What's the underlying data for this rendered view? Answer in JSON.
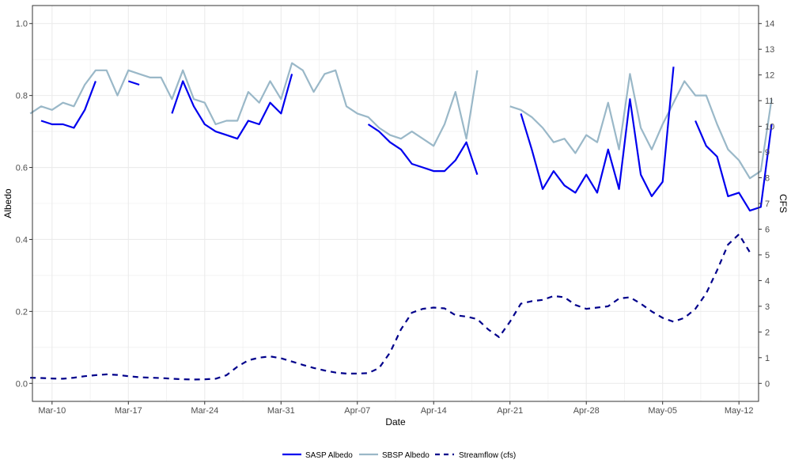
{
  "chart_data": {
    "type": "line",
    "title": "",
    "xlabel": "Date",
    "ylabel": "Albedo",
    "ylabel_right": "CFS",
    "x_tick_labels": [
      "Mar-10",
      "Mar-17",
      "Mar-24",
      "Mar-31",
      "Apr-07",
      "Apr-14",
      "Apr-21",
      "Apr-28",
      "May-05",
      "May-12"
    ],
    "x_tick_days": [
      9,
      16,
      23,
      30,
      37,
      44,
      51,
      58,
      65,
      72
    ],
    "x_range_days": [
      7.2,
      73.8
    ],
    "x_date_note": "Year unknown; days counted from Mar-01",
    "ylim": [
      -0.05,
      1.05
    ],
    "y_ticks": [
      "0.0",
      "0.2",
      "0.4",
      "0.6",
      "0.8",
      "1.0"
    ],
    "y2lim": [
      -0.7,
      14.7
    ],
    "y2_ticks": [
      "0",
      "1",
      "2",
      "3",
      "4",
      "5",
      "6",
      "7",
      "8",
      "9",
      "10",
      "11",
      "12",
      "13",
      "14"
    ],
    "grid": true,
    "legend_position": "bottom",
    "colors": {
      "sasp": "#0000ee",
      "sbsp": "#9ab8c8",
      "streamflow": "#00008b",
      "grid": "#ebebeb",
      "border": "#333333"
    },
    "series": [
      {
        "name": "SASP Albedo",
        "axis": "left",
        "style": "solid",
        "color": "#0000ee",
        "segments": [
          [
            [
              "Mar-08",
              0.73
            ],
            [
              "Mar-09",
              0.72
            ],
            [
              "Mar-10",
              0.72
            ],
            [
              "Mar-11",
              0.71
            ],
            [
              "Mar-12",
              0.76
            ],
            [
              "Mar-13",
              0.84
            ]
          ],
          [
            [
              "Mar-16",
              0.84
            ],
            [
              "Mar-17",
              0.83
            ]
          ],
          [
            [
              "Mar-20",
              0.75
            ],
            [
              "Mar-21",
              0.84
            ],
            [
              "Mar-22",
              0.77
            ],
            [
              "Mar-23",
              0.72
            ],
            [
              "Mar-24",
              0.7
            ],
            [
              "Mar-25",
              0.69
            ],
            [
              "Mar-26",
              0.68
            ],
            [
              "Mar-27",
              0.73
            ],
            [
              "Mar-28",
              0.72
            ],
            [
              "Mar-29",
              0.78
            ],
            [
              "Mar-30",
              0.75
            ],
            [
              "Mar-31",
              0.86
            ]
          ],
          [
            [
              "Apr-07",
              0.72
            ],
            [
              "Apr-08",
              0.7
            ],
            [
              "Apr-09",
              0.67
            ],
            [
              "Apr-10",
              0.65
            ],
            [
              "Apr-11",
              0.61
            ],
            [
              "Apr-12",
              0.6
            ],
            [
              "Apr-13",
              0.59
            ],
            [
              "Apr-14",
              0.59
            ],
            [
              "Apr-15",
              0.62
            ],
            [
              "Apr-16",
              0.67
            ],
            [
              "Apr-17",
              0.58
            ]
          ],
          [
            [
              "Apr-21",
              0.75
            ],
            [
              "Apr-22",
              0.65
            ],
            [
              "Apr-23",
              0.54
            ],
            [
              "Apr-24",
              0.59
            ],
            [
              "Apr-25",
              0.55
            ],
            [
              "Apr-26",
              0.53
            ],
            [
              "Apr-27",
              0.58
            ],
            [
              "Apr-28",
              0.53
            ],
            [
              "Apr-29",
              0.65
            ],
            [
              "Apr-30",
              0.54
            ],
            [
              "May-01",
              0.79
            ],
            [
              "May-02",
              0.58
            ],
            [
              "May-03",
              0.52
            ],
            [
              "May-04",
              0.56
            ],
            [
              "May-05",
              0.88
            ]
          ],
          [
            [
              "May-07",
              0.73
            ],
            [
              "May-08",
              0.66
            ],
            [
              "May-09",
              0.63
            ],
            [
              "May-10",
              0.52
            ],
            [
              "May-11",
              0.53
            ],
            [
              "May-12",
              0.48
            ],
            [
              "May-13",
              0.49
            ],
            [
              "May-14",
              0.72
            ]
          ]
        ]
      },
      {
        "name": "SBSP Albedo",
        "axis": "left",
        "style": "solid",
        "color": "#9ab8c8",
        "segments": [
          [
            [
              "Mar-07",
              0.75
            ],
            [
              "Mar-08",
              0.77
            ],
            [
              "Mar-09",
              0.76
            ],
            [
              "Mar-10",
              0.78
            ],
            [
              "Mar-11",
              0.77
            ],
            [
              "Mar-12",
              0.83
            ],
            [
              "Mar-13",
              0.87
            ],
            [
              "Mar-14",
              0.87
            ],
            [
              "Mar-15",
              0.8
            ],
            [
              "Mar-16",
              0.87
            ],
            [
              "Mar-17",
              0.86
            ],
            [
              "Mar-18",
              0.85
            ],
            [
              "Mar-19",
              0.85
            ],
            [
              "Mar-20",
              0.79
            ],
            [
              "Mar-21",
              0.87
            ],
            [
              "Mar-22",
              0.79
            ],
            [
              "Mar-23",
              0.78
            ],
            [
              "Mar-24",
              0.72
            ],
            [
              "Mar-25",
              0.73
            ],
            [
              "Mar-26",
              0.73
            ],
            [
              "Mar-27",
              0.81
            ],
            [
              "Mar-28",
              0.78
            ],
            [
              "Mar-29",
              0.84
            ],
            [
              "Mar-30",
              0.79
            ],
            [
              "Mar-31",
              0.89
            ],
            [
              "Apr-01",
              0.87
            ],
            [
              "Apr-02",
              0.81
            ],
            [
              "Apr-03",
              0.86
            ],
            [
              "Apr-04",
              0.87
            ],
            [
              "Apr-05",
              0.77
            ],
            [
              "Apr-06",
              0.75
            ],
            [
              "Apr-07",
              0.74
            ],
            [
              "Apr-08",
              0.71
            ],
            [
              "Apr-09",
              0.69
            ],
            [
              "Apr-10",
              0.68
            ],
            [
              "Apr-11",
              0.7
            ],
            [
              "Apr-12",
              0.68
            ],
            [
              "Apr-13",
              0.66
            ],
            [
              "Apr-14",
              0.72
            ],
            [
              "Apr-15",
              0.81
            ],
            [
              "Apr-16",
              0.68
            ],
            [
              "Apr-17",
              0.87
            ]
          ],
          [
            [
              "Apr-20",
              0.77
            ],
            [
              "Apr-21",
              0.76
            ],
            [
              "Apr-22",
              0.74
            ],
            [
              "Apr-23",
              0.71
            ],
            [
              "Apr-24",
              0.67
            ],
            [
              "Apr-25",
              0.68
            ],
            [
              "Apr-26",
              0.64
            ],
            [
              "Apr-27",
              0.69
            ],
            [
              "Apr-28",
              0.67
            ],
            [
              "Apr-29",
              0.78
            ],
            [
              "Apr-30",
              0.65
            ],
            [
              "May-01",
              0.86
            ],
            [
              "May-02",
              0.71
            ],
            [
              "May-03",
              0.65
            ],
            [
              "May-04",
              0.72
            ],
            [
              "May-05",
              0.78
            ],
            [
              "May-06",
              0.84
            ],
            [
              "May-07",
              0.8
            ],
            [
              "May-08",
              0.8
            ],
            [
              "May-09",
              0.72
            ],
            [
              "May-10",
              0.65
            ],
            [
              "May-11",
              0.62
            ],
            [
              "May-12",
              0.57
            ],
            [
              "May-13",
              0.59
            ],
            [
              "May-14",
              0.79
            ]
          ]
        ]
      },
      {
        "name": "Streamflow (cfs)",
        "axis": "right",
        "style": "dashed",
        "color": "#00008b",
        "segments": [
          [
            [
              "Mar-07",
              0.22
            ],
            [
              "Mar-08",
              0.21
            ],
            [
              "Mar-09",
              0.19
            ],
            [
              "Mar-10",
              0.18
            ],
            [
              "Mar-11",
              0.22
            ],
            [
              "Mar-12",
              0.28
            ],
            [
              "Mar-13",
              0.32
            ],
            [
              "Mar-14",
              0.35
            ],
            [
              "Mar-15",
              0.33
            ],
            [
              "Mar-16",
              0.28
            ],
            [
              "Mar-17",
              0.24
            ],
            [
              "Mar-18",
              0.22
            ],
            [
              "Mar-19",
              0.21
            ],
            [
              "Mar-20",
              0.18
            ],
            [
              "Mar-21",
              0.16
            ],
            [
              "Mar-22",
              0.15
            ],
            [
              "Mar-23",
              0.16
            ],
            [
              "Mar-24",
              0.18
            ],
            [
              "Mar-25",
              0.32
            ],
            [
              "Mar-26",
              0.65
            ],
            [
              "Mar-27",
              0.9
            ],
            [
              "Mar-28",
              1.0
            ],
            [
              "Mar-29",
              1.05
            ],
            [
              "Mar-30",
              0.98
            ],
            [
              "Mar-31",
              0.85
            ],
            [
              "Apr-01",
              0.72
            ],
            [
              "Apr-02",
              0.6
            ],
            [
              "Apr-03",
              0.5
            ],
            [
              "Apr-04",
              0.42
            ],
            [
              "Apr-05",
              0.38
            ],
            [
              "Apr-06",
              0.38
            ],
            [
              "Apr-07",
              0.4
            ],
            [
              "Apr-08",
              0.6
            ],
            [
              "Apr-09",
              1.2
            ],
            [
              "Apr-10",
              2.1
            ],
            [
              "Apr-11",
              2.75
            ],
            [
              "Apr-12",
              2.9
            ],
            [
              "Apr-13",
              2.95
            ],
            [
              "Apr-14",
              2.92
            ],
            [
              "Apr-15",
              2.65
            ],
            [
              "Apr-16",
              2.6
            ],
            [
              "Apr-17",
              2.5
            ],
            [
              "Apr-18",
              2.1
            ],
            [
              "Apr-19",
              1.8
            ],
            [
              "Apr-20",
              2.4
            ],
            [
              "Apr-21",
              3.1
            ],
            [
              "Apr-22",
              3.2
            ],
            [
              "Apr-23",
              3.25
            ],
            [
              "Apr-24",
              3.4
            ],
            [
              "Apr-25",
              3.35
            ],
            [
              "Apr-26",
              3.05
            ],
            [
              "Apr-27",
              2.9
            ],
            [
              "Apr-28",
              2.95
            ],
            [
              "Apr-29",
              3.0
            ],
            [
              "Apr-30",
              3.3
            ],
            [
              "May-01",
              3.35
            ],
            [
              "May-02",
              3.1
            ],
            [
              "May-03",
              2.8
            ],
            [
              "May-04",
              2.55
            ],
            [
              "May-05",
              2.4
            ],
            [
              "May-06",
              2.55
            ],
            [
              "May-07",
              2.9
            ],
            [
              "May-08",
              3.5
            ],
            [
              "May-09",
              4.4
            ],
            [
              "May-10",
              5.4
            ],
            [
              "May-11",
              5.8
            ],
            [
              "May-12",
              5.1
            ]
          ]
        ]
      }
    ]
  }
}
